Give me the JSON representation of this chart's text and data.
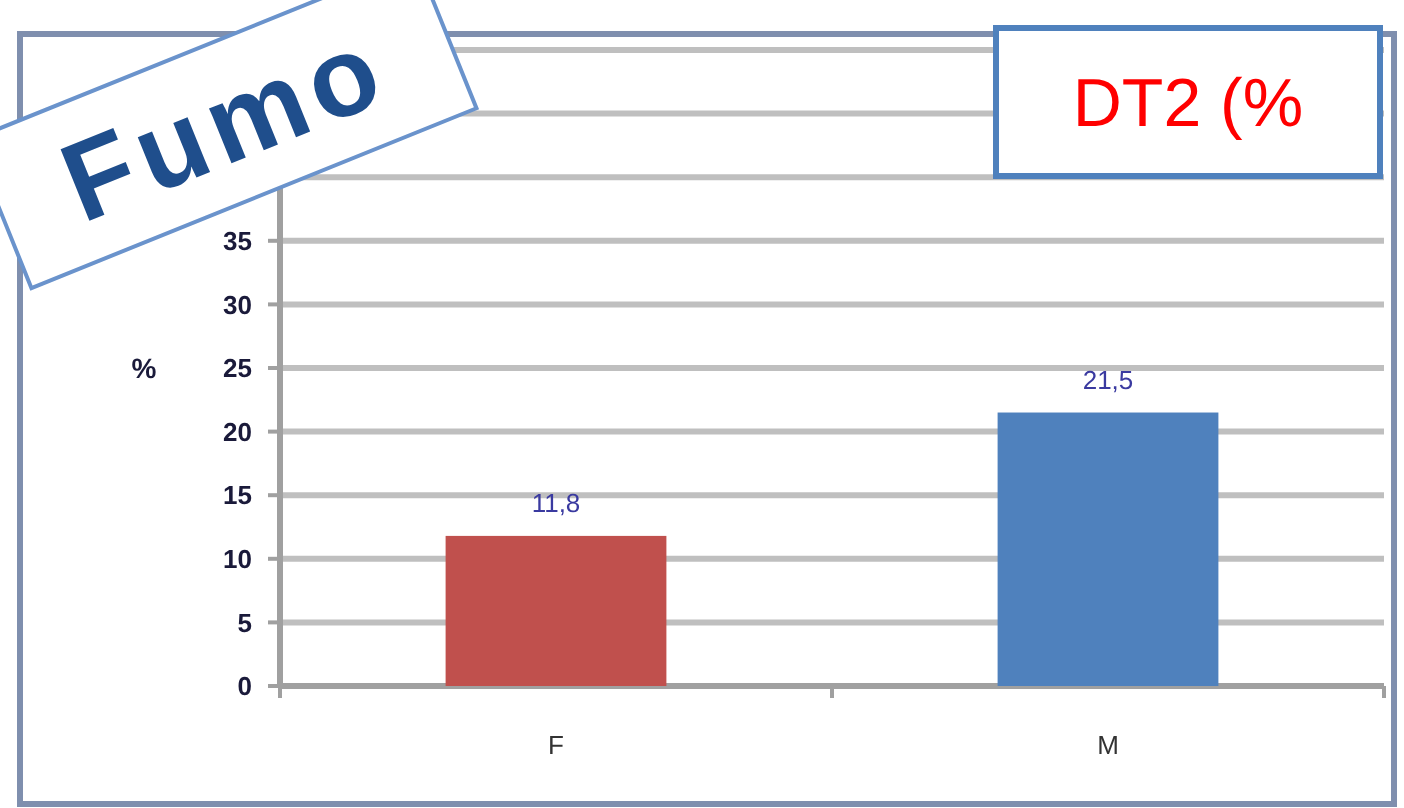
{
  "chart_data": {
    "type": "bar",
    "title": "Fumo",
    "subtitle": "DT2  (%",
    "ylabel": "%",
    "categories": [
      "F",
      "M"
    ],
    "values": [
      11.8,
      21.5
    ],
    "colors": [
      "#c0504d",
      "#4f81bd"
    ],
    "value_labels": [
      "11,8",
      "21,5"
    ],
    "ylim": [
      0,
      50
    ],
    "yticks": [
      0,
      5,
      10,
      15,
      20,
      25,
      30,
      35,
      {
        "value": 40,
        "label": null
      },
      {
        "value": 45,
        "label": null
      },
      {
        "value": 50,
        "label": null
      }
    ],
    "grid": "y"
  }
}
